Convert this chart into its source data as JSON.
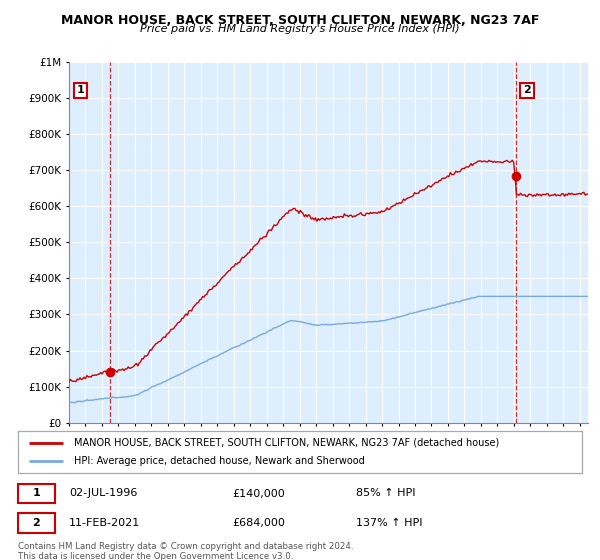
{
  "title": "MANOR HOUSE, BACK STREET, SOUTH CLIFTON, NEWARK, NG23 7AF",
  "subtitle": "Price paid vs. HM Land Registry's House Price Index (HPI)",
  "legend_line1": "MANOR HOUSE, BACK STREET, SOUTH CLIFTON, NEWARK, NG23 7AF (detached house)",
  "legend_line2": "HPI: Average price, detached house, Newark and Sherwood",
  "transaction1_date": "02-JUL-1996",
  "transaction1_price": "£140,000",
  "transaction1_hpi": "85% ↑ HPI",
  "transaction1_year": 1996.5,
  "transaction1_value": 140000,
  "transaction2_date": "11-FEB-2021",
  "transaction2_price": "£684,000",
  "transaction2_hpi": "137% ↑ HPI",
  "transaction2_year": 2021.1,
  "transaction2_value": 684000,
  "footer": "Contains HM Land Registry data © Crown copyright and database right 2024.\nThis data is licensed under the Open Government Licence v3.0.",
  "hpi_color": "#7aaadd",
  "price_color": "#cc0000",
  "chart_bg_color": "#ddeeff",
  "grid_color": "#ffffff",
  "ylim": [
    0,
    1000000
  ],
  "yticks": [
    0,
    100000,
    200000,
    300000,
    400000,
    500000,
    600000,
    700000,
    800000,
    900000,
    1000000
  ],
  "ytick_labels": [
    "£0",
    "£100K",
    "£200K",
    "£300K",
    "£400K",
    "£500K",
    "£600K",
    "£700K",
    "£800K",
    "£900K",
    "£1M"
  ],
  "xlim_start": 1994.0,
  "xlim_end": 2025.5
}
